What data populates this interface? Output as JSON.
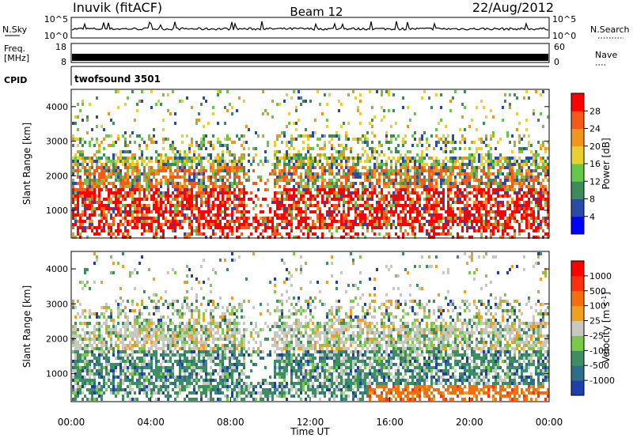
{
  "header": {
    "station": "Inuvik (fitACF)",
    "beam": "Beam 12",
    "date": "22/Aug/2012"
  },
  "top_panels": {
    "nsky": {
      "label": "N.Sky",
      "ticks": [
        "10^5",
        "10^0"
      ],
      "right_label": "N.Search",
      "right_ticks": [
        "10^5",
        "10^0"
      ]
    },
    "freq": {
      "label_line1": "Freq.",
      "label_line2": "[MHz]",
      "ticks": [
        "18",
        "8"
      ],
      "right_label": "Nave",
      "right_ticks": [
        "60",
        "0"
      ]
    },
    "cpid": {
      "label": "CPID",
      "value": "twofsound 3501"
    }
  },
  "chart_data": [
    {
      "type": "heatmap",
      "name": "power",
      "ylabel": "Slant Range [km]",
      "yticks": [
        "1000",
        "2000",
        "3000",
        "4000"
      ],
      "ylim": [
        200,
        4500
      ],
      "colorbar": {
        "label": "Power [dB]",
        "ticks": [
          "4",
          "8",
          "12",
          "16",
          "20",
          "24",
          "28"
        ],
        "colors": [
          "#0000ff",
          "#2a4aa8",
          "#3d8a5a",
          "#66c84a",
          "#e8d030",
          "#f0961e",
          "#f55a18",
          "#ff0000"
        ]
      }
    },
    {
      "type": "heatmap",
      "name": "velocity",
      "ylabel": "Slant Range [km]",
      "yticks": [
        "1000",
        "2000",
        "3000",
        "4000"
      ],
      "ylim": [
        200,
        4500
      ],
      "xlabel": "Time UT",
      "xticks": [
        "00:00",
        "04:00",
        "08:00",
        "12:00",
        "16:00",
        "20:00",
        "00:00"
      ],
      "colorbar": {
        "label": "Velocity [m s^-1]",
        "ticks": [
          "1000",
          "500",
          "100",
          "25",
          "-25",
          "-100",
          "-500",
          "-1000"
        ],
        "colors": [
          "#1f3fa8",
          "#2f6e8a",
          "#3d8f63",
          "#7ac94a",
          "#c8c8c0",
          "#f0a020",
          "#f07010",
          "#ff3010",
          "#ff0000"
        ]
      }
    }
  ]
}
